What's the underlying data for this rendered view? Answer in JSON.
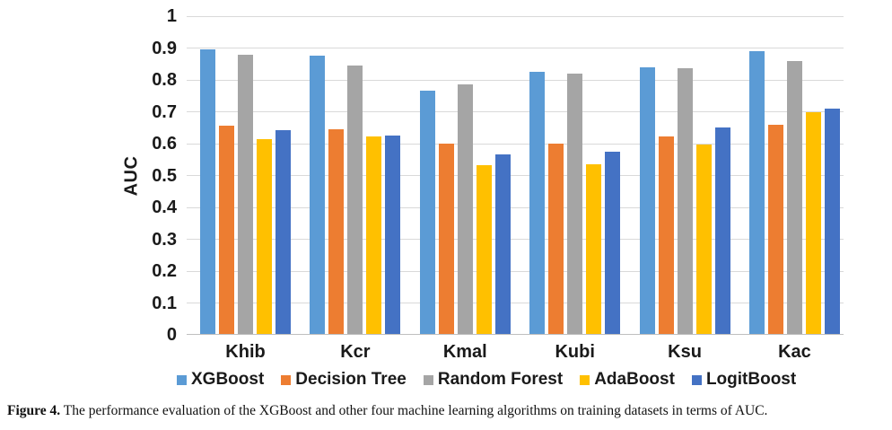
{
  "chart_data": {
    "type": "bar",
    "title": "",
    "xlabel": "",
    "ylabel": "AUC",
    "ylim": [
      0,
      1
    ],
    "ytick_step": 0.1,
    "yticks": [
      {
        "value": 1.0,
        "label": "1"
      },
      {
        "value": 0.9,
        "label": "0.9"
      },
      {
        "value": 0.8,
        "label": "0.8"
      },
      {
        "value": 0.7,
        "label": "0.7"
      },
      {
        "value": 0.6,
        "label": "0.6"
      },
      {
        "value": 0.5,
        "label": "0.5"
      },
      {
        "value": 0.4,
        "label": "0.4"
      },
      {
        "value": 0.3,
        "label": "0.3"
      },
      {
        "value": 0.2,
        "label": "0.2"
      },
      {
        "value": 0.1,
        "label": "0.1"
      },
      {
        "value": 0.0,
        "label": "0"
      }
    ],
    "grid": true,
    "legend_position": "bottom",
    "categories": [
      "Khib",
      "Kcr",
      "Kmal",
      "Kubi",
      "Ksu",
      "Kac"
    ],
    "series": [
      {
        "name": "XGBoost",
        "color": "#5B9BD5",
        "values": [
          0.895,
          0.875,
          0.765,
          0.825,
          0.84,
          0.89
        ]
      },
      {
        "name": "Decision Tree",
        "color": "#ED7D31",
        "values": [
          0.655,
          0.645,
          0.6,
          0.6,
          0.622,
          0.658
        ]
      },
      {
        "name": "Random Forest",
        "color": "#A5A5A5",
        "values": [
          0.879,
          0.845,
          0.785,
          0.82,
          0.838,
          0.859
        ]
      },
      {
        "name": "AdaBoost",
        "color": "#FFC000",
        "values": [
          0.614,
          0.622,
          0.533,
          0.536,
          0.598,
          0.7
        ]
      },
      {
        "name": "LogitBoost",
        "color": "#4472C4",
        "values": [
          0.643,
          0.625,
          0.567,
          0.576,
          0.652,
          0.71
        ]
      }
    ]
  },
  "caption": {
    "label": "Figure 4.",
    "text": "The performance evaluation of the XGBoost and other four machine learning algorithms on training datasets in terms of AUC."
  },
  "colors": {
    "gridline": "#D9D9D9",
    "axis_line": "#BFBFBF",
    "text": "#1A1A1A"
  }
}
